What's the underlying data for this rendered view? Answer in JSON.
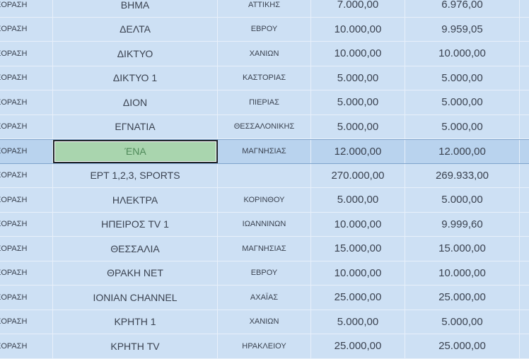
{
  "colors": {
    "background": "#cde0f4",
    "selected_row": "#b9d3ee",
    "active_cell": "#a9d5ae"
  },
  "selected_row_index": 6,
  "rows": [
    {
      "type": "ΕΟΡΑΣΗ",
      "name": "ΒΗΜΑ",
      "region": "ΑΤΤΙΚΗΣ",
      "amount": "7.000,00",
      "paid": "6.976,00"
    },
    {
      "type": "ΕΟΡΑΣΗ",
      "name": "ΔΕΛΤΑ",
      "region": "ΕΒΡΟΥ",
      "amount": "10.000,00",
      "paid": "9.959,05"
    },
    {
      "type": "ΕΟΡΑΣΗ",
      "name": "ΔΙΚΤΥΟ",
      "region": "ΧΑΝΙΩΝ",
      "amount": "10.000,00",
      "paid": "10.000,00"
    },
    {
      "type": "ΕΟΡΑΣΗ",
      "name": "ΔΙΚΤΥΟ 1",
      "region": "ΚΑΣΤΟΡΙΑΣ",
      "amount": "5.000,00",
      "paid": "5.000,00"
    },
    {
      "type": "ΕΟΡΑΣΗ",
      "name": "ΔΙΟΝ",
      "region": "ΠΙΕΡΙΑΣ",
      "amount": "5.000,00",
      "paid": "5.000,00"
    },
    {
      "type": "ΕΟΡΑΣΗ",
      "name": "ΕΓΝΑΤΙΑ",
      "region": "ΘΕΣΣΑΛΟΝΙΚΗΣ",
      "amount": "5.000,00",
      "paid": "5.000,00"
    },
    {
      "type": "ΕΟΡΑΣΗ",
      "name": "ΈΝΑ",
      "region": "ΜΑΓΝΗΣΙΑΣ",
      "amount": "12.000,00",
      "paid": "12.000,00"
    },
    {
      "type": "ΕΟΡΑΣΗ",
      "name": "ΕΡΤ 1,2,3, SPORTS",
      "region": "",
      "amount": "270.000,00",
      "paid": "269.933,00"
    },
    {
      "type": "ΕΟΡΑΣΗ",
      "name": "ΗΛΕΚΤΡΑ",
      "region": "ΚΟΡΙΝΘΟΥ",
      "amount": "5.000,00",
      "paid": "5.000,00"
    },
    {
      "type": "ΕΟΡΑΣΗ",
      "name": "ΗΠΕΙΡΟΣ TV 1",
      "region": "ΙΩΑΝΝΙΝΩΝ",
      "amount": "10.000,00",
      "paid": "9.999,60"
    },
    {
      "type": "ΕΟΡΑΣΗ",
      "name": "ΘΕΣΣΑΛΙΑ",
      "region": "ΜΑΓΝΗΣΙΑΣ",
      "amount": "15.000,00",
      "paid": "15.000,00"
    },
    {
      "type": "ΕΟΡΑΣΗ",
      "name": "ΘΡΑΚΗ NET",
      "region": "ΕΒΡΟΥ",
      "amount": "10.000,00",
      "paid": "10.000,00"
    },
    {
      "type": "ΕΟΡΑΣΗ",
      "name": "IONIAN CHANNEL",
      "region": "ΑΧΑΪΑΣ",
      "amount": "25.000,00",
      "paid": "25.000,00"
    },
    {
      "type": "ΕΟΡΑΣΗ",
      "name": "ΚΡΗΤΗ 1",
      "region": "ΧΑΝΙΩΝ",
      "amount": "5.000,00",
      "paid": "5.000,00"
    },
    {
      "type": "ΕΟΡΑΣΗ",
      "name": "ΚΡΗΤΗ TV",
      "region": "ΗΡΑΚΛΕΙΟΥ",
      "amount": "25.000,00",
      "paid": "25.000,00"
    }
  ]
}
